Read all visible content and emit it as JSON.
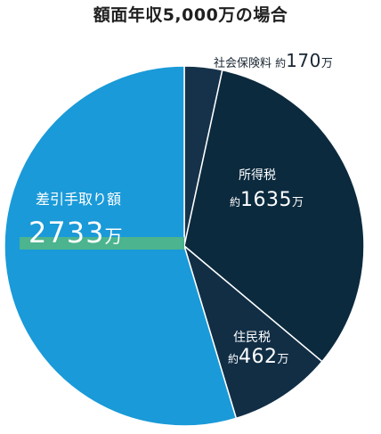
{
  "chart_data": {
    "type": "pie",
    "title": "額面年収5,000万の場合",
    "slices": [
      {
        "label": "社会保険料",
        "prefix": "約",
        "value": 170,
        "unit": "万",
        "color": "#16324a"
      },
      {
        "label": "所得税",
        "prefix": "約",
        "value": 1635,
        "unit": "万",
        "color": "#0b2a3e"
      },
      {
        "label": "住民税",
        "prefix": "約",
        "value": 462,
        "unit": "万",
        "color": "#112e45"
      },
      {
        "label": "差引手取り額",
        "prefix": "",
        "value": 2733,
        "unit": "万",
        "color": "#1a9ad8"
      }
    ],
    "highlight_bar_color": "#4cb48e"
  }
}
